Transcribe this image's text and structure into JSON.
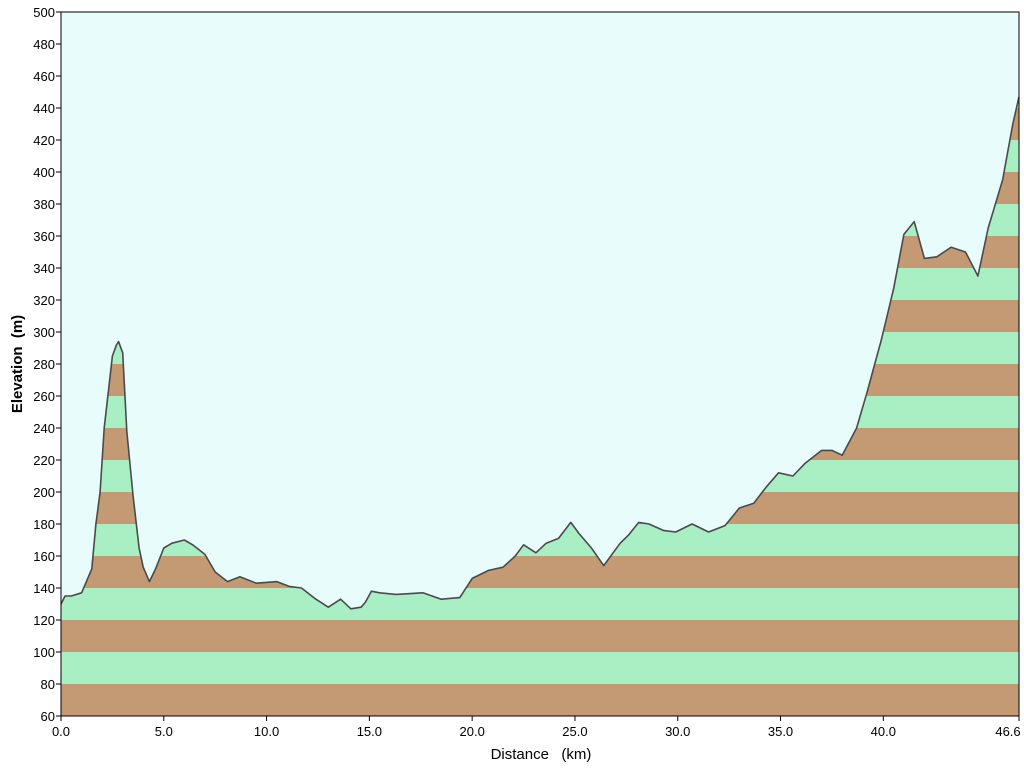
{
  "chart_data": {
    "type": "area",
    "title": "",
    "xlabel": "Distance   (km)",
    "ylabel": "Elevation  (m)",
    "xlim": [
      0,
      46.6
    ],
    "ylim": [
      60,
      500
    ],
    "x_ticks": [
      0,
      5,
      10,
      15,
      20,
      25,
      30,
      35,
      40,
      46.6
    ],
    "x_tick_labels": [
      "0.0",
      "5.0",
      "10.0",
      "15.0",
      "20.0",
      "25.0",
      "30.0",
      "35.0",
      "40.0",
      "46.6"
    ],
    "y_ticks": [
      60,
      80,
      100,
      120,
      140,
      160,
      180,
      200,
      220,
      240,
      260,
      280,
      300,
      320,
      340,
      360,
      380,
      400,
      420,
      440,
      460,
      480,
      500
    ],
    "band_interval_m": 20,
    "colors": {
      "plot_bg": "#e8fcfc",
      "band_brown": "#c49a74",
      "band_green": "#a8f0c4",
      "profile_line": "#4a4a4a"
    },
    "series": [
      {
        "x": [
          0,
          0.2,
          0.5,
          1.0,
          1.2,
          1.5,
          1.7,
          1.9,
          2.1,
          2.5,
          2.7,
          2.8,
          3.0,
          3.2,
          3.5,
          3.8,
          4.0,
          4.3,
          4.6,
          5.0,
          5.4,
          6.0,
          6.4,
          7.0,
          7.5,
          8.1,
          8.7,
          9.5,
          10.5,
          11.1,
          11.7,
          12.4,
          13.0,
          13.6,
          14.1,
          14.6,
          14.8,
          15.1,
          15.5,
          16.3,
          17.6,
          18.5,
          19.4,
          20.0,
          20.8,
          21.5,
          22.1,
          22.5,
          23.1,
          23.6,
          24.2,
          24.8,
          25.2,
          25.8,
          26.4,
          27.2,
          27.6,
          28.1,
          28.6,
          29.3,
          29.9,
          30.7,
          31.5,
          32.3,
          33.0,
          33.7,
          34.3,
          34.9,
          35.6,
          36.2,
          37.0,
          37.5,
          38.0,
          38.7,
          39.2,
          39.9,
          40.5,
          41.0,
          41.5,
          42.0,
          42.6,
          43.3,
          44.0,
          44.6,
          45.1,
          45.8,
          46.3,
          46.6
        ],
        "y": [
          130,
          135,
          135,
          137,
          143,
          152,
          180,
          200,
          240,
          285,
          292,
          294,
          287,
          238,
          198,
          165,
          153,
          144,
          152,
          165,
          168,
          170,
          167,
          161,
          150,
          144,
          147,
          143,
          144,
          141,
          140,
          133,
          128,
          133,
          127,
          128,
          131,
          138,
          137,
          136,
          137,
          133,
          134,
          146,
          151,
          153,
          160,
          167,
          162,
          168,
          171,
          181,
          174,
          165,
          154,
          168,
          173,
          181,
          180,
          176,
          175,
          180,
          175,
          179,
          190,
          193,
          203,
          212,
          210,
          218,
          226,
          226,
          223,
          240,
          262,
          295,
          327,
          361,
          369,
          346,
          347,
          353,
          350,
          335,
          365,
          395,
          430,
          447
        ]
      }
    ]
  }
}
